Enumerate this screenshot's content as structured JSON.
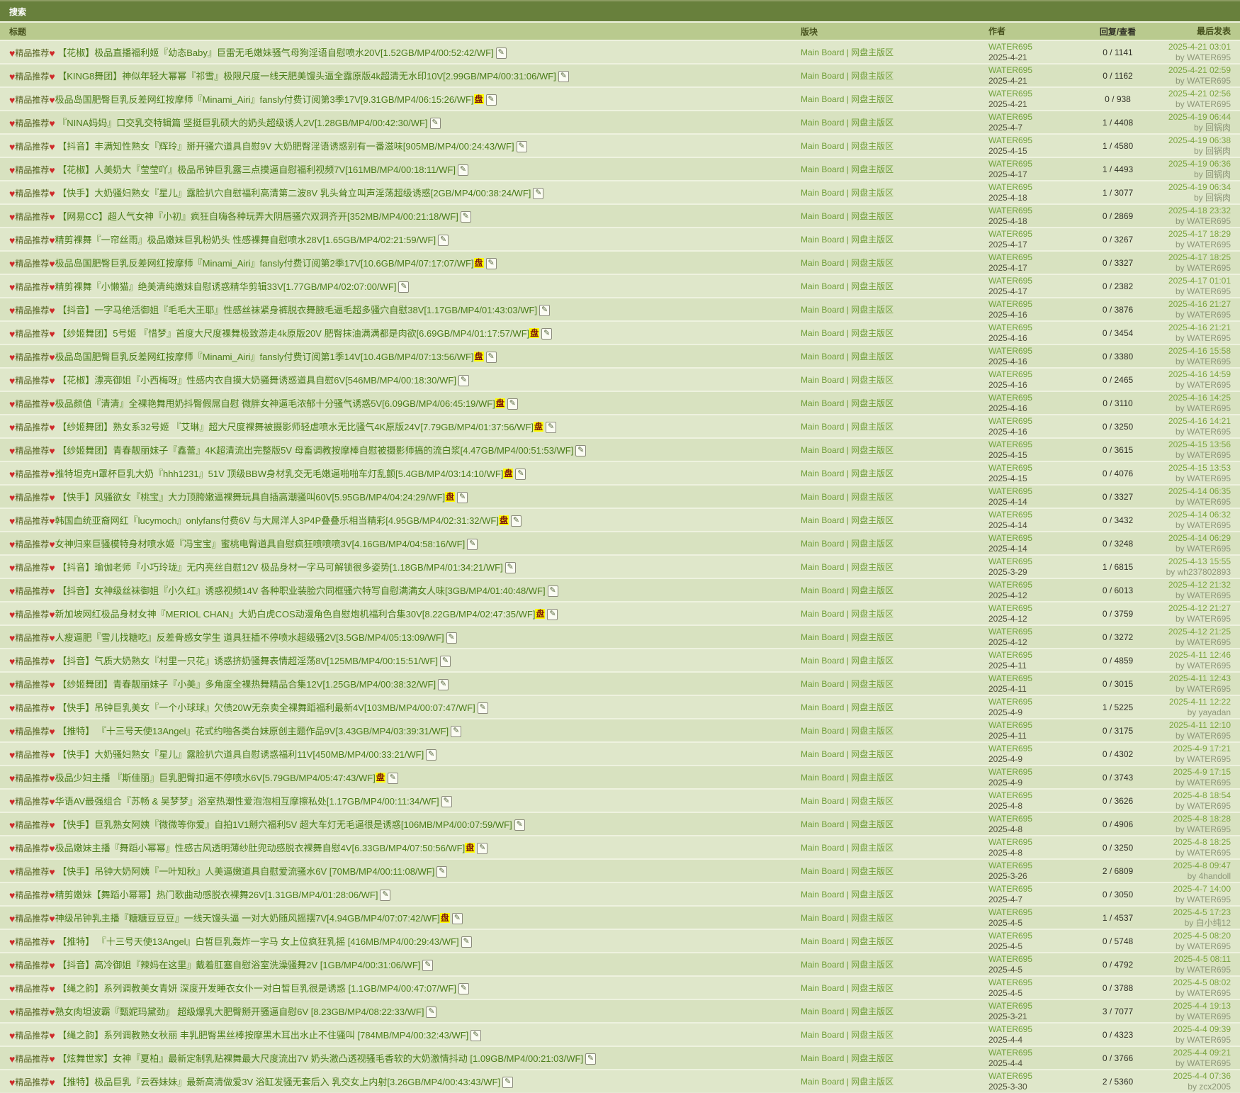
{
  "header": {
    "title": "搜索"
  },
  "columns": {
    "title": "标题",
    "board": "版块",
    "author": "作者",
    "replies": "回复/查看",
    "last_post": "最后发表"
  },
  "icons": {
    "heart": "♥",
    "badge_glyph": "盘",
    "attach_glyph": "✎"
  },
  "row_prefix": "精品推荐",
  "board_label": "Main Board | 网盘主版区",
  "author_label": "WATER695",
  "by_label": "by ",
  "colors": {
    "topbar_bg": "#68803c",
    "header_bg": "#b9ca8e",
    "row_a": "#dfe7ca",
    "row_b": "#d8e2c0",
    "title_link": "#4a7c18",
    "board_link": "#6f9d37",
    "heart": "#cf2b2b",
    "badge_bg": "#ffff00",
    "badge_fg": "#7a1010"
  },
  "rows": [
    {
      "title": " 【花椒】极品直播福利姬『幼态Baby』巨雷无毛嫩妹骚气母狗淫语自慰喷水20V[1.52GB/MP4/00:52:42/WF]",
      "badge": false,
      "date": "2025-4-21",
      "replies_views": "0 / 1141",
      "last_date": "2025-4-21 03:01",
      "last_by": "WATER695"
    },
    {
      "title": " 【KING8舞团】神似年轻大幂幂『祁雪』极限尺度一线天肥美馒头逼全露原版4k超清无水印10V[2.99GB/MP4/00:31:06/WF]",
      "badge": false,
      "date": "2025-4-21",
      "replies_views": "0 / 1162",
      "last_date": "2025-4-21 02:59",
      "last_by": "WATER695"
    },
    {
      "title": "极品岛国肥臀巨乳反差网红按摩师『Minami_Airi』fansly付费订阅第3季17V[9.31GB/MP4/06:15:26/WF]",
      "badge": true,
      "date": "2025-4-21",
      "replies_views": "0 / 938",
      "last_date": "2025-4-21 02:56",
      "last_by": "WATER695"
    },
    {
      "title": " 『NINA妈妈』口交乳交特辑篇 坚挺巨乳硕大的奶头超级诱人2V[1.28GB/MP4/00:42:30/WF]",
      "badge": false,
      "date": "2025-4-7",
      "replies_views": "1 / 4408",
      "last_date": "2025-4-19 06:44",
      "last_by": "回锅肉"
    },
    {
      "title": " 【抖音】丰满知性熟女『辉玲』掰开骚穴道具自慰9V 大奶肥臀淫语诱惑别有一番滋味[905MB/MP4/00:24:43/WF]",
      "badge": false,
      "date": "2025-4-15",
      "replies_views": "1 / 4580",
      "last_date": "2025-4-19 06:38",
      "last_by": "回锅肉"
    },
    {
      "title": " 【花椒】人美奶大『莹莹吖』极品吊钟巨乳露三点摸逼自慰福利视频7V[161MB/MP4/00:18:11/WF]",
      "badge": false,
      "date": "2025-4-17",
      "replies_views": "1 / 4493",
      "last_date": "2025-4-19 06:36",
      "last_by": "回锅肉"
    },
    {
      "title": " 【快手】大奶骚妇熟女『星儿』露脸扒穴自慰福利高清第二波8V 乳头耸立叫声淫荡超级诱惑[2GB/MP4/00:38:24/WF]",
      "badge": false,
      "date": "2025-4-18",
      "replies_views": "1 / 3077",
      "last_date": "2025-4-19 06:34",
      "last_by": "回锅肉"
    },
    {
      "title": " 【网易CC】超人气女神『小初』疯狂自嗨各种玩弄大阴唇骚穴双洞齐开[352MB/MP4/00:21:18/WF]",
      "badge": false,
      "date": "2025-4-18",
      "replies_views": "0 / 2869",
      "last_date": "2025-4-18 23:32",
      "last_by": "WATER695"
    },
    {
      "title": "精剪裸舞『一帘丝雨』极品嫩妹巨乳粉奶头 性感裸舞自慰喷水28V[1.65GB/MP4/02:21:59/WF]",
      "badge": false,
      "date": "2025-4-17",
      "replies_views": "0 / 3267",
      "last_date": "2025-4-17 18:29",
      "last_by": "WATER695"
    },
    {
      "title": "极品岛国肥臀巨乳反差网红按摩师『Minami_Airi』fansly付费订阅第2季17V[10.6GB/MP4/07:17:07/WF]",
      "badge": true,
      "date": "2025-4-17",
      "replies_views": "0 / 3327",
      "last_date": "2025-4-17 18:25",
      "last_by": "WATER695"
    },
    {
      "title": "精剪裸舞『小懒猫』绝美清纯嫩妹自慰诱惑精华剪辑33V[1.77GB/MP4/02:07:00/WF]",
      "badge": false,
      "date": "2025-4-17",
      "replies_views": "0 / 2382",
      "last_date": "2025-4-17 01:01",
      "last_by": "WATER695"
    },
    {
      "title": " 【抖音】一字马绝活御姐『毛毛大王耶』性感丝袜紧身裤脱衣舞腋毛逼毛超多骚穴自慰38V[1.17GB/MP4/01:43:03/WF]",
      "badge": false,
      "date": "2025-4-16",
      "replies_views": "0 / 3876",
      "last_date": "2025-4-16 21:27",
      "last_by": "WATER695"
    },
    {
      "title": " 【纱姬舞团】5号姬 『惜梦』首度大尺度裸舞极致游走4k原版20V 肥臀抹油满满都是肉欲[6.69GB/MP4/01:17:57/WF]",
      "badge": true,
      "date": "2025-4-16",
      "replies_views": "0 / 3454",
      "last_date": "2025-4-16 21:21",
      "last_by": "WATER695"
    },
    {
      "title": "极品岛国肥臀巨乳反差网红按摩师『Minami_Airi』fansly付费订阅第1季14V[10.4GB/MP4/07:13:56/WF]",
      "badge": true,
      "date": "2025-4-16",
      "replies_views": "0 / 3380",
      "last_date": "2025-4-16 15:58",
      "last_by": "WATER695"
    },
    {
      "title": " 【花椒】漂亮御姐『小西梅呀』性感内衣自摸大奶骚舞诱惑道具自慰6V[546MB/MP4/00:18:30/WF]",
      "badge": false,
      "date": "2025-4-16",
      "replies_views": "0 / 2465",
      "last_date": "2025-4-16 14:59",
      "last_by": "WATER695"
    },
    {
      "title": "极品颜值『清清』全裸艳舞甩奶抖臀假屌自慰 微胖女神逼毛浓郁十分骚气诱惑5V[6.09GB/MP4/06:45:19/WF]",
      "badge": true,
      "date": "2025-4-16",
      "replies_views": "0 / 3110",
      "last_date": "2025-4-16 14:25",
      "last_by": "WATER695"
    },
    {
      "title": " 【纱姬舞团】熟女系32号姬 『艾琳』超大尺度裸舞被摄影师轻虐喷水无比骚气4K原版24V[7.79GB/MP4/01:37:56/WF]",
      "badge": true,
      "date": "2025-4-16",
      "replies_views": "0 / 3250",
      "last_date": "2025-4-16 14:21",
      "last_by": "WATER695"
    },
    {
      "title": " 【纱姬舞团】青春靓丽妹子『鑫蕾』4K超清流出完整版5V 母畜调教按摩棒自慰被摄影师搞的流白浆[4.47GB/MP4/00:51:53/WF]",
      "badge": false,
      "date": "2025-4-15",
      "replies_views": "0 / 3615",
      "last_date": "2025-4-15 13:56",
      "last_by": "WATER695"
    },
    {
      "title": "推特坦克H罩杯巨乳大奶『hhh1231』51V 顶级BBW身材乳交无毛嫩逼啪啪车灯乱颤[5.4GB/MP4/03:14:10/WF]",
      "badge": true,
      "date": "2025-4-15",
      "replies_views": "0 / 4076",
      "last_date": "2025-4-15 13:53",
      "last_by": "WATER695"
    },
    {
      "title": " 【快手】风骚欲女『桃宝』大力顶胯嫩逼裸舞玩具自插高潮骚叫60V[5.95GB/MP4/04:24:29/WF]",
      "badge": true,
      "date": "2025-4-14",
      "replies_views": "0 / 3327",
      "last_date": "2025-4-14 06:35",
      "last_by": "WATER695"
    },
    {
      "title": "韩国血统亚裔网红『lucymoch』onlyfans付费6V 与大屌洋人3P4P叠叠乐相当精彩[4.95GB/MP4/02:31:32/WF]",
      "badge": true,
      "date": "2025-4-14",
      "replies_views": "0 / 3432",
      "last_date": "2025-4-14 06:32",
      "last_by": "WATER695"
    },
    {
      "title": "女神归来巨骚模特身材喷水姬『冯宝宝』蜜桃电臀道具自慰疯狂喷喷喷3V[4.16GB/MP4/04:58:16/WF]",
      "badge": false,
      "date": "2025-4-14",
      "replies_views": "0 / 3248",
      "last_date": "2025-4-14 06:29",
      "last_by": "WATER695"
    },
    {
      "title": " 【抖音】瑜伽老师『小巧玲珑』无内亮丝自慰12V 极品身材一字马可解锁很多姿势[1.18GB/MP4/01:34:21/WF]",
      "badge": false,
      "date": "2025-3-29",
      "replies_views": "1 / 6815",
      "last_date": "2025-4-13 15:55",
      "last_by": "wh237802893"
    },
    {
      "title": " 【抖音】女神级丝袜御姐『小久红』诱惑视频14V 各种职业装脸穴同框骚穴特写自慰满满女人味[3GB/MP4/01:40:48/WF]",
      "badge": false,
      "date": "2025-4-12",
      "replies_views": "0 / 6013",
      "last_date": "2025-4-12 21:32",
      "last_by": "WATER695"
    },
    {
      "title": "新加坡网红极品身材女神『MERIOL CHAN』大奶白虎COS动漫角色自慰炮机福利合集30V[8.22GB/MP4/02:47:35/WF]",
      "badge": true,
      "date": "2025-4-12",
      "replies_views": "0 / 3759",
      "last_date": "2025-4-12 21:27",
      "last_by": "WATER695"
    },
    {
      "title": "人瘦逼肥『雪儿找糖吃』反差骨感女学生 道具狂插不停喷水超级骚2V[3.5GB/MP4/05:13:09/WF]",
      "badge": false,
      "date": "2025-4-12",
      "replies_views": "0 / 3272",
      "last_date": "2025-4-12 21:25",
      "last_by": "WATER695"
    },
    {
      "title": " 【抖音】气质大奶熟女『村里一只花』诱惑挤奶骚舞表情超淫荡8V[125MB/MP4/00:15:51/WF]",
      "badge": false,
      "date": "2025-4-11",
      "replies_views": "0 / 4859",
      "last_date": "2025-4-11 12:46",
      "last_by": "WATER695"
    },
    {
      "title": " 【纱姬舞团】青春靓丽妹子『小美』多角度全裸热舞精品合集12V[1.25GB/MP4/00:38:32/WF]",
      "badge": false,
      "date": "2025-4-11",
      "replies_views": "0 / 3015",
      "last_date": "2025-4-11 12:43",
      "last_by": "WATER695"
    },
    {
      "title": " 【快手】吊钟巨乳美女『一个小球球』欠债20W无奈卖全裸舞蹈福利最新4V[103MB/MP4/00:07:47/WF]",
      "badge": false,
      "date": "2025-4-9",
      "replies_views": "1 / 5225",
      "last_date": "2025-4-11 12:22",
      "last_by": "yayadan"
    },
    {
      "title": " 【推特】 『十三号天使13Angel』花式约啪各类台妹原创主题作品9V[3.43GB/MP4/03:39:31/WF]",
      "badge": false,
      "date": "2025-4-11",
      "replies_views": "0 / 3175",
      "last_date": "2025-4-11 12:10",
      "last_by": "WATER695"
    },
    {
      "title": " 【快手】大奶骚妇熟女『星儿』露脸扒穴道具自慰诱惑福利11V[450MB/MP4/00:33:21/WF]",
      "badge": false,
      "date": "2025-4-9",
      "replies_views": "0 / 4302",
      "last_date": "2025-4-9 17:21",
      "last_by": "WATER695"
    },
    {
      "title": "极品少妇主播 『斯佳丽』巨乳肥臀扣逼不停喷水6V[5.79GB/MP4/05:47:43/WF]",
      "badge": true,
      "date": "2025-4-9",
      "replies_views": "0 / 3743",
      "last_date": "2025-4-9 17:15",
      "last_by": "WATER695"
    },
    {
      "title": "华语AV最强组合『苏畅 & 吴梦梦』浴室热潮性爱泡泡相互摩擦私处[1.17GB/MP4/00:11:34/WF]",
      "badge": false,
      "date": "2025-4-8",
      "replies_views": "0 / 3626",
      "last_date": "2025-4-8 18:54",
      "last_by": "WATER695"
    },
    {
      "title": " 【快手】巨乳熟女阿姨『微微等你爱』自拍1V1掰穴福利5V 超大车灯无毛逼很是诱惑[106MB/MP4/00:07:59/WF]",
      "badge": false,
      "date": "2025-4-8",
      "replies_views": "0 / 4906",
      "last_date": "2025-4-8 18:28",
      "last_by": "WATER695"
    },
    {
      "title": "极品嫩妹主播『舞蹈小幂幂』性感古风透明薄纱肚兜动感脱衣裸舞自慰4V[6.33GB/MP4/07:50:56/WF]",
      "badge": true,
      "date": "2025-4-8",
      "replies_views": "0 / 3250",
      "last_date": "2025-4-8 18:25",
      "last_by": "WATER695"
    },
    {
      "title": " 【快手】吊钟大奶阿姨『一叶知秋』人美逼嫩道具自慰爱流骚水6V [70MB/MP4/00:11:08/WF]",
      "badge": false,
      "date": "2025-3-26",
      "replies_views": "2 / 6809",
      "last_date": "2025-4-8 09:47",
      "last_by": "4handoll"
    },
    {
      "title": "精剪嫩妹【舞蹈小幂幂】热门歌曲动感脱衣裸舞26V[1.31GB/MP4/01:28:06/WF]",
      "badge": false,
      "date": "2025-4-7",
      "replies_views": "0 / 3050",
      "last_date": "2025-4-7 14:00",
      "last_by": "WATER695"
    },
    {
      "title": "神级吊钟乳主播『糖糖豆豆豆』一线天馒头逼 一对大奶随风摇摆7V[4.94GB/MP4/07:07:42/WF]",
      "badge": true,
      "date": "2025-4-5",
      "replies_views": "1 / 4537",
      "last_date": "2025-4-5 17:23",
      "last_by": "白小纯12"
    },
    {
      "title": " 【推特】 『十三号天使13Angel』白皙巨乳轰炸一字马 女上位疯狂乳摇 [416MB/MP4/00:29:43/WF]",
      "badge": false,
      "date": "2025-4-5",
      "replies_views": "0 / 5748",
      "last_date": "2025-4-5 08:20",
      "last_by": "WATER695"
    },
    {
      "title": " 【抖音】高冷御姐『辣妈在这里』戴着肛塞自慰浴室洗澡骚舞2V [1GB/MP4/00:31:06/WF]",
      "badge": false,
      "date": "2025-4-5",
      "replies_views": "0 / 4792",
      "last_date": "2025-4-5 08:11",
      "last_by": "WATER695"
    },
    {
      "title": " 【绳之韵】系列调教美女青妍 深度开发睡衣女仆一对白皙巨乳很是诱惑 [1.1GB/MP4/00:47:07/WF]",
      "badge": false,
      "date": "2025-4-5",
      "replies_views": "0 / 3788",
      "last_date": "2025-4-5 08:02",
      "last_by": "WATER695"
    },
    {
      "title": "熟女肉坦波霸『甄妮玛黛劲』 超级爆乳大肥臀掰开骚逼自慰6V [8.23GB/MP4/08:22:33/WF]",
      "badge": false,
      "date": "2025-3-21",
      "replies_views": "3 / 7077",
      "last_date": "2025-4-4 19:13",
      "last_by": "WATER695"
    },
    {
      "title": " 【绳之韵】系列调教熟女秋丽 丰乳肥臀黑丝棒按摩黑木耳出水止不住骚叫 [784MB/MP4/00:32:43/WF]",
      "badge": false,
      "date": "2025-4-4",
      "replies_views": "0 / 4323",
      "last_date": "2025-4-4 09:39",
      "last_by": "WATER695"
    },
    {
      "title": " 【炫舞世家】女神『夏柏』最新定制乳贴裸舞最大尺度流出7V 奶头激凸透视骚毛香软的大奶激情抖动 [1.09GB/MP4/00:21:03/WF]",
      "badge": false,
      "date": "2025-4-4",
      "replies_views": "0 / 3766",
      "last_date": "2025-4-4 09:21",
      "last_by": "WATER695"
    },
    {
      "title": " 【推特】极品巨乳『云吞妹妹』最新高清做爱3V 浴缸发骚无套后入 乳交女上内射[3.26GB/MP4/00:43:43/WF]",
      "badge": false,
      "date": "2025-3-30",
      "replies_views": "2 / 5360",
      "last_date": "2025-4-4 07:36",
      "last_by": "zcx2005"
    }
  ]
}
